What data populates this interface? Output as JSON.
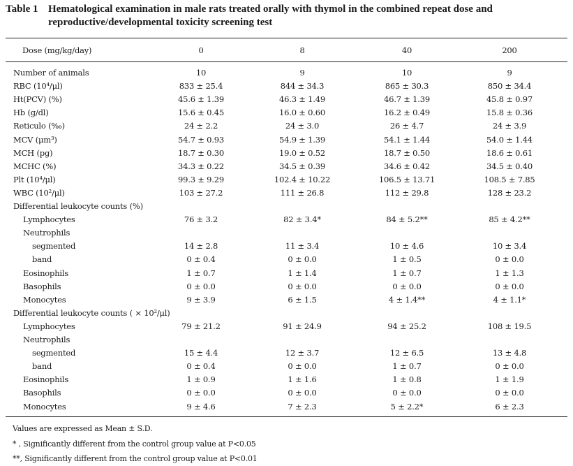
{
  "caption": {
    "label": "Table 1",
    "title": "Hematological examination in male rats treated orally with thymol in the combined repeat dose and reproductive/developmental toxicity screening test"
  },
  "header": {
    "dose_label": "Dose (mg/kg/day)",
    "doses": [
      "0",
      "8",
      "40",
      "200"
    ]
  },
  "rows": [
    {
      "label": "Number of animals",
      "indent": 0,
      "values": [
        "10",
        "9",
        "10",
        "9"
      ]
    },
    {
      "label": "RBC (10⁴/μl)",
      "indent": 0,
      "values": [
        "833 ± 25.4",
        "844 ± 34.3",
        "865 ± 30.3",
        "850 ± 34.4"
      ]
    },
    {
      "label": "Ht(PCV) (%)",
      "indent": 0,
      "values": [
        "45.6 ± 1.39",
        "46.3 ± 1.49",
        "46.7 ± 1.39",
        "45.8 ± 0.97"
      ]
    },
    {
      "label": "Hb (g/dl)",
      "indent": 0,
      "values": [
        "15.6 ± 0.45",
        "16.0 ± 0.60",
        "16.2 ± 0.49",
        "15.8 ± 0.36"
      ]
    },
    {
      "label": "Reticulo (‰)",
      "indent": 0,
      "values": [
        "24 ± 2.2",
        "24 ± 3.0",
        "26 ± 4.7",
        "24 ± 3.9"
      ]
    },
    {
      "label": "MCV (μm³)",
      "indent": 0,
      "values": [
        "54.7 ± 0.93",
        "54.9 ± 1.39",
        "54.1 ± 1.44",
        "54.0 ± 1.44"
      ]
    },
    {
      "label": "MCH (pg)",
      "indent": 0,
      "values": [
        "18.7 ± 0.30",
        "19.0 ± 0.52",
        "18.7 ± 0.50",
        "18.6 ± 0.61"
      ]
    },
    {
      "label": "MCHC (%)",
      "indent": 0,
      "values": [
        "34.3 ± 0.22",
        "34.5 ± 0.39",
        "34.6 ± 0.42",
        "34.5 ± 0.40"
      ]
    },
    {
      "label": "Plt (10⁴/μl)",
      "indent": 0,
      "values": [
        "99.3 ± 9.29",
        "102.4 ± 10.22",
        "106.5 ± 13.71",
        "108.5 ± 7.85"
      ]
    },
    {
      "label": "WBC (10²/μl)",
      "indent": 0,
      "values": [
        "103 ± 27.2",
        "111 ± 26.8",
        "112 ± 29.8",
        "128 ± 23.2"
      ]
    },
    {
      "label": "Differential leukocyte counts (%)",
      "indent": 0,
      "values": [
        "",
        "",
        "",
        ""
      ]
    },
    {
      "label": "Lymphocytes",
      "indent": 1,
      "values": [
        "76 ± 3.2",
        "82 ± 3.4*",
        "84 ± 5.2**",
        "85 ± 4.2**"
      ]
    },
    {
      "label": "Neutrophils",
      "indent": 1,
      "values": [
        "",
        "",
        "",
        ""
      ]
    },
    {
      "label": "segmented",
      "indent": 2,
      "values": [
        "14 ± 2.8",
        "11 ± 3.4",
        "10 ± 4.6",
        "10 ± 3.4"
      ]
    },
    {
      "label": "band",
      "indent": 2,
      "values": [
        "0 ± 0.4",
        "0 ± 0.0",
        "1 ± 0.5",
        "0 ± 0.0"
      ]
    },
    {
      "label": "Eosinophils",
      "indent": 1,
      "values": [
        "1 ± 0.7",
        "1 ± 1.4",
        "1 ± 0.7",
        "1 ± 1.3"
      ]
    },
    {
      "label": "Basophils",
      "indent": 1,
      "values": [
        "0 ± 0.0",
        "0 ± 0.0",
        "0 ± 0.0",
        "0 ± 0.0"
      ]
    },
    {
      "label": "Monocytes",
      "indent": 1,
      "values": [
        "9 ± 3.9",
        "6 ± 1.5",
        "4 ± 1.4**",
        "4 ± 1.1*"
      ]
    },
    {
      "label": "Differential leukocyte counts ( × 10²/μl)",
      "indent": 0,
      "values": [
        "",
        "",
        "",
        ""
      ]
    },
    {
      "label": "Lymphocytes",
      "indent": 1,
      "values": [
        "79 ± 21.2",
        "91 ± 24.9",
        "94 ± 25.2",
        "108 ± 19.5"
      ]
    },
    {
      "label": "Neutrophils",
      "indent": 1,
      "values": [
        "",
        "",
        "",
        ""
      ]
    },
    {
      "label": "segmented",
      "indent": 2,
      "values": [
        "15 ± 4.4",
        "12 ± 3.7",
        "12 ± 6.5",
        "13 ± 4.8"
      ]
    },
    {
      "label": "band",
      "indent": 2,
      "values": [
        "0 ± 0.4",
        "0 ± 0.0",
        "1 ± 0.7",
        "0 ± 0.0"
      ]
    },
    {
      "label": "Eosinophils",
      "indent": 1,
      "values": [
        "1 ± 0.9",
        "1 ± 1.6",
        "1 ± 0.8",
        "1 ± 1.9"
      ]
    },
    {
      "label": "Basophils",
      "indent": 1,
      "values": [
        "0 ± 0.0",
        "0 ± 0.0",
        "0 ± 0.0",
        "0 ± 0.0"
      ]
    },
    {
      "label": "Monocytes",
      "indent": 1,
      "values": [
        "9 ± 4.6",
        "7 ± 2.3",
        "5 ± 2.2*",
        "6 ± 2.3"
      ]
    }
  ],
  "footnotes": [
    "Values are expressed as Mean ± S.D.",
    "* , Significantly different from the control group value at P<0.05",
    "**, Significantly different from the control group value at P<0.01"
  ]
}
